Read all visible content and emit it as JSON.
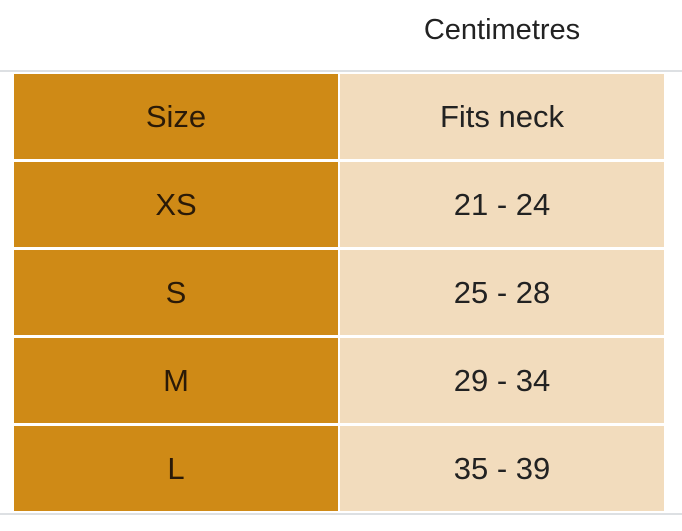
{
  "caption": "Centimetres",
  "table": {
    "headers": [
      "Size",
      "Fits neck"
    ],
    "rows": [
      [
        "XS",
        "21 - 24"
      ],
      [
        "S",
        "25 - 28"
      ],
      [
        "M",
        "29 - 34"
      ],
      [
        "L",
        "35 - 39"
      ]
    ]
  },
  "colors": {
    "size_column": "#cf8a16",
    "value_column": "#f2dcbd"
  }
}
